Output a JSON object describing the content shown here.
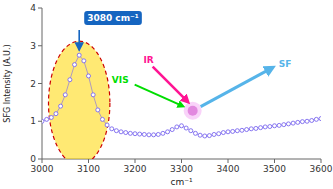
{
  "chart_data": {
    "type": "line",
    "xlabel": "cm⁻¹",
    "ylabel": "SFG Intensity (A.U.)",
    "x": [
      3000,
      3010,
      3020,
      3030,
      3040,
      3050,
      3060,
      3070,
      3080,
      3090,
      3100,
      3110,
      3120,
      3130,
      3140,
      3150,
      3160,
      3170,
      3180,
      3190,
      3200,
      3210,
      3220,
      3230,
      3240,
      3250,
      3260,
      3270,
      3280,
      3290,
      3300,
      3310,
      3320,
      3330,
      3340,
      3350,
      3360,
      3370,
      3380,
      3390,
      3400,
      3410,
      3420,
      3430,
      3440,
      3450,
      3460,
      3470,
      3480,
      3490,
      3500,
      3510,
      3520,
      3530,
      3540,
      3550,
      3560,
      3570,
      3580,
      3590,
      3600
    ],
    "values": [
      1.0,
      1.05,
      1.1,
      1.2,
      1.4,
      1.7,
      2.1,
      2.5,
      2.75,
      2.6,
      2.2,
      1.7,
      1.3,
      1.05,
      0.9,
      0.8,
      0.75,
      0.72,
      0.7,
      0.68,
      0.67,
      0.66,
      0.65,
      0.64,
      0.64,
      0.65,
      0.68,
      0.72,
      0.78,
      0.85,
      0.88,
      0.82,
      0.75,
      0.68,
      0.63,
      0.61,
      0.62,
      0.65,
      0.67,
      0.7,
      0.72,
      0.73,
      0.75,
      0.76,
      0.78,
      0.8,
      0.81,
      0.83,
      0.85,
      0.86,
      0.88,
      0.89,
      0.91,
      0.93,
      0.95,
      0.97,
      0.99,
      1.0,
      1.02,
      1.05,
      1.07
    ],
    "color": "#7B68EE",
    "marker": "circle",
    "line_style": "solid",
    "xlim": [
      3000,
      3600
    ],
    "ylim": [
      0,
      4
    ],
    "xticks": [
      3000,
      3100,
      3200,
      3300,
      3400,
      3500,
      3600
    ],
    "yticks": [
      0,
      1,
      2,
      3,
      4
    ],
    "grid": false,
    "annotations": [
      {
        "text": "3080 cm⁻¹",
        "x": 3080,
        "color": "#1565C0"
      },
      {
        "text": "IR",
        "color": "#FF1493"
      },
      {
        "text": "VIS",
        "color": "#00DD00"
      },
      {
        "text": "SF",
        "color": "#56B4E9"
      }
    ]
  }
}
